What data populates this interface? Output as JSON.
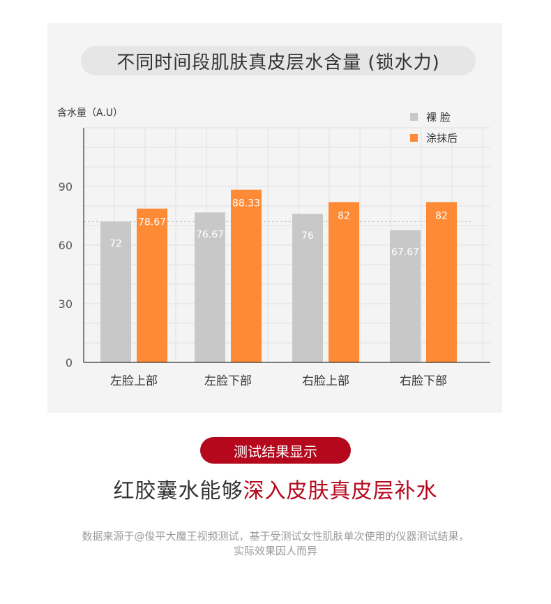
{
  "chart_data": {
    "type": "bar",
    "title": "不同时间段肌肤真皮层水含量 (锁水力)",
    "ylabel": "含水量（A.U）",
    "xlabel": "",
    "categories": [
      "左脸上部",
      "左脸下部",
      "右脸上部",
      "右脸下部"
    ],
    "series": [
      {
        "name": "裸 脸",
        "values": [
          72,
          76.67,
          76,
          67.67
        ],
        "labels": [
          "72",
          "76.67",
          "76",
          "67.67"
        ],
        "color": "#c8c8c8"
      },
      {
        "name": "涂抹后",
        "values": [
          78.67,
          88.33,
          82,
          82
        ],
        "labels": [
          "78.67",
          "88.33",
          "82",
          "82"
        ],
        "color": "#ff8a35"
      }
    ],
    "yticks": [
      "0",
      "30",
      "60",
      "90"
    ],
    "ylim": [
      0,
      120
    ],
    "reference_line": 72,
    "grid": true,
    "legend": "top-right"
  },
  "result_label": "测试结果显示",
  "headline": {
    "plain": "红胶囊水能够",
    "highlight": "深入皮肤真皮层补水"
  },
  "source_note": {
    "line1": "数据来源于@俊平大魔王视频测试，基于受测试女性肌肤单次使用的仪器测试结果，",
    "line2": "实际效果因人而异"
  },
  "colors": {
    "accent": "#b5081d",
    "bar_before": "#c8c8c8",
    "bar_after": "#ff8a35"
  }
}
